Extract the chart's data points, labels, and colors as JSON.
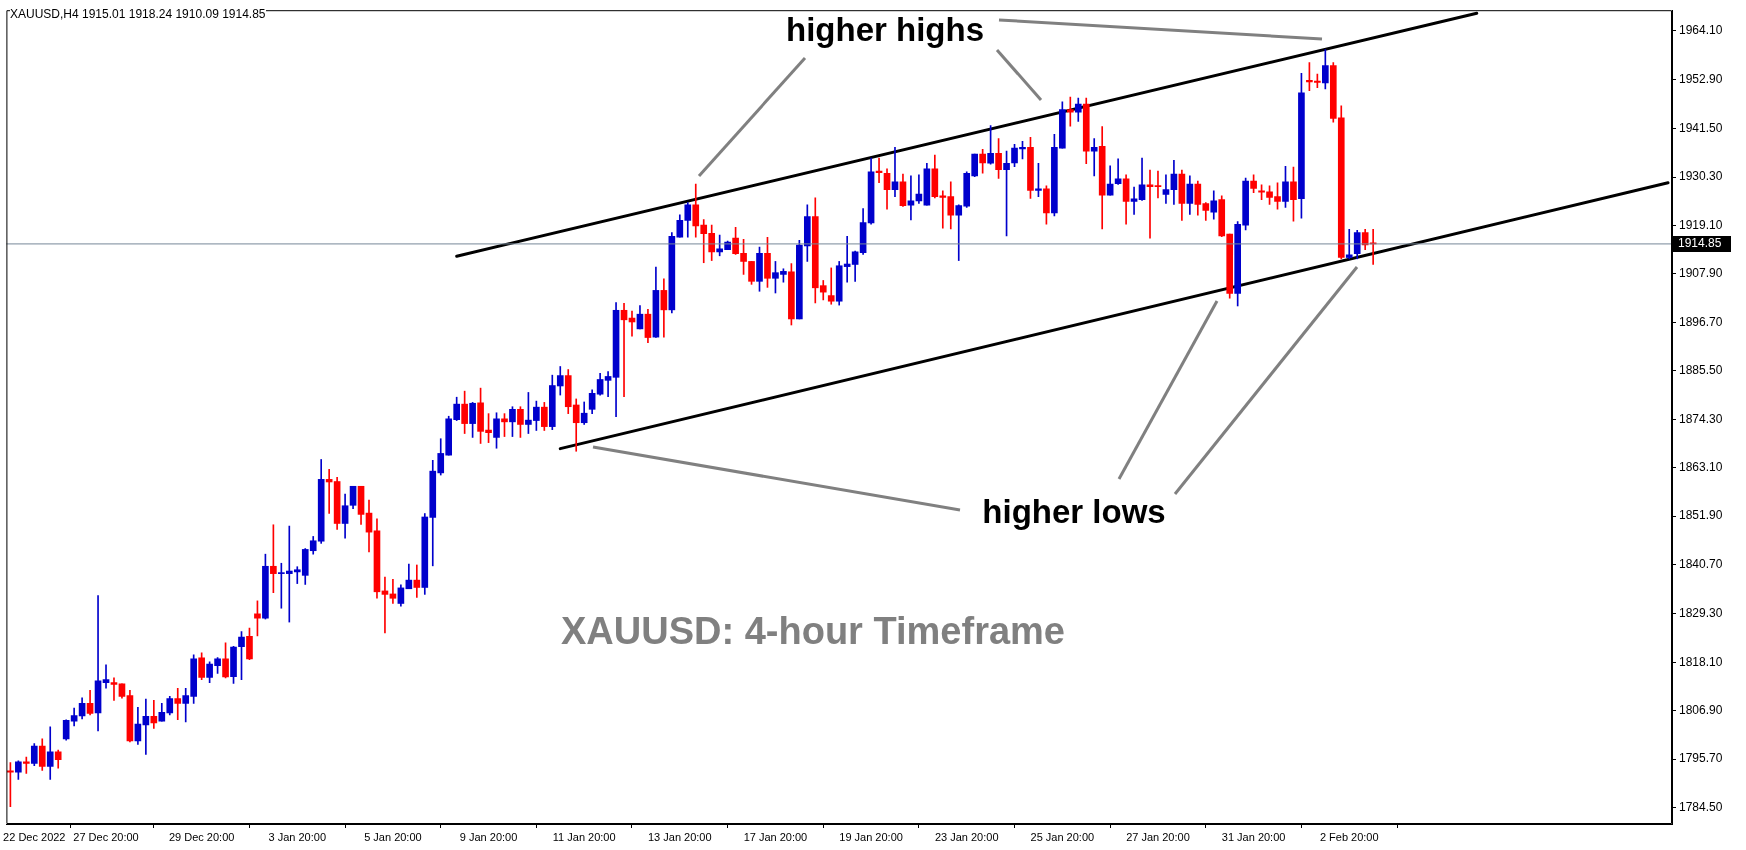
{
  "chart_data": {
    "type": "candlestick",
    "title": "XAUUSD,H4 1915.01 1918.24 1910.09 1914.85",
    "annotations": [
      "higher highs",
      "higher lows",
      "XAUUSD: 4-hour Timeframe"
    ],
    "categories": [
      null,
      null,
      null,
      "22 Dec 2022",
      null,
      null,
      null,
      null,
      null,
      null,
      null,
      null,
      "27 Dec 20:00",
      null,
      null,
      null,
      null,
      null,
      null,
      null,
      null,
      null,
      null,
      null,
      "29 Dec 20:00",
      null,
      null,
      null,
      null,
      null,
      null,
      null,
      null,
      null,
      null,
      null,
      "3 Jan 20:00",
      null,
      null,
      null,
      null,
      null,
      null,
      null,
      null,
      null,
      null,
      null,
      "5 Jan 20:00",
      null,
      null,
      null,
      null,
      null,
      null,
      null,
      null,
      null,
      null,
      null,
      "9 Jan 20:00",
      null,
      null,
      null,
      null,
      null,
      null,
      null,
      null,
      null,
      null,
      null,
      "11 Jan 20:00",
      null,
      null,
      null,
      null,
      null,
      null,
      null,
      null,
      null,
      null,
      null,
      "13 Jan 20:00",
      null,
      null,
      null,
      null,
      null,
      null,
      null,
      null,
      null,
      null,
      null,
      "17 Jan 20:00",
      null,
      null,
      null,
      null,
      null,
      null,
      null,
      null,
      null,
      null,
      null,
      "19 Jan 20:00",
      null,
      null,
      null,
      null,
      null,
      null,
      null,
      null,
      null,
      null,
      null,
      "23 Jan 20:00",
      null,
      null,
      null,
      null,
      null,
      null,
      null,
      null,
      null,
      null,
      null,
      "25 Jan 20:00",
      null,
      null,
      null,
      null,
      null,
      null,
      null,
      null,
      null,
      null,
      null,
      "27 Jan 20:00",
      null,
      null,
      null,
      null,
      null,
      null,
      null,
      null,
      null,
      null,
      null,
      "31 Jan 20:00",
      null,
      null,
      null,
      null,
      null,
      null,
      null,
      null,
      null,
      null,
      null,
      "2 Feb 20:00",
      null,
      null,
      null,
      null,
      null,
      null,
      null,
      null,
      null,
      null,
      null,
      null,
      null,
      null,
      null,
      null,
      null,
      null,
      null,
      null,
      null,
      null,
      null,
      null,
      null,
      null,
      null,
      null,
      null,
      null,
      null,
      null,
      null,
      null,
      null,
      null,
      null,
      null,
      null,
      null
    ],
    "ohlc": [
      [
        1793.0,
        1794.9,
        1784.7,
        1792.7
      ],
      [
        1792.7,
        1795.3,
        1791.0,
        1795.1
      ],
      [
        1795.1,
        1796.2,
        1792.4,
        1794.7
      ],
      [
        1794.7,
        1799.3,
        1794.2,
        1798.7
      ],
      [
        1798.7,
        1800.4,
        1793.1,
        1794.0
      ],
      [
        1794.0,
        1803.2,
        1791.0,
        1797.4
      ],
      [
        1797.4,
        1797.8,
        1793.6,
        1795.6
      ],
      [
        1800.4,
        1804.8,
        1800.1,
        1804.7
      ],
      [
        1804.5,
        1807.5,
        1803.4,
        1805.8
      ],
      [
        1805.7,
        1809.9,
        1805.0,
        1808.6
      ],
      [
        1808.6,
        1811.6,
        1805.9,
        1806.3
      ],
      [
        1806.4,
        1833.5,
        1802.2,
        1813.8
      ],
      [
        1813.4,
        1817.5,
        1812.1,
        1814.1
      ],
      [
        1813.4,
        1814.5,
        1809.3,
        1813.0
      ],
      [
        1813.1,
        1813.1,
        1809.8,
        1810.2
      ],
      [
        1810.4,
        1811.6,
        1799.7,
        1799.9
      ],
      [
        1799.9,
        1807.7,
        1799.1,
        1803.8
      ],
      [
        1803.6,
        1809.6,
        1796.8,
        1805.6
      ],
      [
        1805.6,
        1809.3,
        1802.8,
        1804.1
      ],
      [
        1804.5,
        1808.6,
        1804.5,
        1806.5
      ],
      [
        1806.4,
        1810.2,
        1805.9,
        1809.7
      ],
      [
        1809.7,
        1812.1,
        1804.8,
        1808.6
      ],
      [
        1808.6,
        1812.1,
        1804.3,
        1810.4
      ],
      [
        1810.2,
        1819.8,
        1808.6,
        1818.9
      ],
      [
        1819.1,
        1820.3,
        1814.1,
        1814.6
      ],
      [
        1814.6,
        1818.2,
        1813.4,
        1817.7
      ],
      [
        1817.3,
        1819.2,
        1815.5,
        1818.9
      ],
      [
        1818.9,
        1822.6,
        1814.5,
        1814.7
      ],
      [
        1814.8,
        1821.8,
        1813.2,
        1821.6
      ],
      [
        1821.7,
        1825.2,
        1814.1,
        1823.9
      ],
      [
        1824.1,
        1826.0,
        1818.7,
        1818.9
      ],
      [
        1829.3,
        1832.3,
        1824.2,
        1828.3
      ],
      [
        1828.3,
        1843.1,
        1828.1,
        1840.3
      ],
      [
        1840.3,
        1849.9,
        1834.2,
        1838.6
      ],
      [
        1838.6,
        1841.0,
        1830.6,
        1838.7
      ],
      [
        1838.6,
        1849.6,
        1827.4,
        1839.2
      ],
      [
        1839.0,
        1840.2,
        1836.3,
        1839.5
      ],
      [
        1838.2,
        1844.4,
        1836.1,
        1844.2
      ],
      [
        1843.9,
        1847.2,
        1843.1,
        1846.2
      ],
      [
        1846.1,
        1865.0,
        1845.6,
        1860.4
      ],
      [
        1860.4,
        1862.7,
        1852.5,
        1859.8
      ],
      [
        1859.9,
        1860.9,
        1848.8,
        1850.2
      ],
      [
        1850.2,
        1857.0,
        1846.8,
        1854.3
      ],
      [
        1854.4,
        1858.8,
        1853.6,
        1858.8
      ],
      [
        1858.8,
        1858.8,
        1850.0,
        1852.3
      ],
      [
        1852.6,
        1855.6,
        1843.6,
        1848.2
      ],
      [
        1848.5,
        1851.3,
        1832.9,
        1834.4
      ],
      [
        1834.6,
        1837.8,
        1824.9,
        1833.8
      ],
      [
        1833.9,
        1837.3,
        1831.7,
        1832.9
      ],
      [
        1831.7,
        1836.0,
        1831.1,
        1835.3
      ],
      [
        1835.1,
        1840.8,
        1835.1,
        1837.1
      ],
      [
        1837.1,
        1840.6,
        1833.1,
        1835.4
      ],
      [
        1835.4,
        1852.5,
        1833.8,
        1851.7
      ],
      [
        1851.6,
        1864.8,
        1840.4,
        1862.3
      ],
      [
        1861.9,
        1869.8,
        1861.4,
        1866.4
      ],
      [
        1866.0,
        1875.0,
        1866.0,
        1874.4
      ],
      [
        1874.2,
        1879.4,
        1874.0,
        1877.8
      ],
      [
        1877.8,
        1880.8,
        1871.0,
        1873.3
      ],
      [
        1873.3,
        1878.2,
        1870.1,
        1878.0
      ],
      [
        1878.1,
        1881.5,
        1868.7,
        1871.5
      ],
      [
        1871.8,
        1875.6,
        1868.9,
        1871.2
      ],
      [
        1870.1,
        1875.8,
        1867.6,
        1874.4
      ],
      [
        1874.4,
        1875.6,
        1870.3,
        1873.7
      ],
      [
        1873.7,
        1877.2,
        1870.3,
        1876.6
      ],
      [
        1876.6,
        1877.2,
        1870.1,
        1873.1
      ],
      [
        1873.1,
        1880.5,
        1871.0,
        1874.1
      ],
      [
        1874.0,
        1878.5,
        1871.7,
        1877.1
      ],
      [
        1877.1,
        1878.2,
        1871.7,
        1872.6
      ],
      [
        1872.6,
        1884.5,
        1871.9,
        1882.1
      ],
      [
        1882.0,
        1886.5,
        1879.9,
        1884.4
      ],
      [
        1884.4,
        1885.8,
        1875.6,
        1877.2
      ],
      [
        1877.6,
        1879.0,
        1866.9,
        1873.5
      ],
      [
        1873.5,
        1878.3,
        1873.1,
        1875.7
      ],
      [
        1876.6,
        1881.1,
        1875.6,
        1880.3
      ],
      [
        1880.1,
        1884.9,
        1879.9,
        1883.5
      ],
      [
        1883.3,
        1885.3,
        1879.5,
        1884.2
      ],
      [
        1884.0,
        1901.3,
        1874.9,
        1899.5
      ],
      [
        1899.5,
        1901.1,
        1879.5,
        1897.3
      ],
      [
        1897.7,
        1899.3,
        1893.5,
        1896.8
      ],
      [
        1895.2,
        1900.6,
        1895.2,
        1898.6
      ],
      [
        1898.6,
        1899.7,
        1892.0,
        1893.2
      ],
      [
        1893.3,
        1909.5,
        1893.2,
        1904.1
      ],
      [
        1904.1,
        1906.8,
        1893.3,
        1899.6
      ],
      [
        1899.6,
        1917.5,
        1898.9,
        1916.6
      ],
      [
        1916.4,
        1921.6,
        1916.4,
        1920.3
      ],
      [
        1920.3,
        1924.4,
        1916.4,
        1923.9
      ],
      [
        1923.9,
        1928.7,
        1916.4,
        1919.0
      ],
      [
        1919.2,
        1920.5,
        1910.5,
        1917.2
      ],
      [
        1917.3,
        1919.2,
        1911.0,
        1913.0
      ],
      [
        1913.0,
        1916.9,
        1912.1,
        1913.7
      ],
      [
        1913.5,
        1915.5,
        1913.5,
        1915.3
      ],
      [
        1916.2,
        1918.7,
        1912.4,
        1912.6
      ],
      [
        1912.7,
        1915.9,
        1907.8,
        1910.8
      ],
      [
        1910.8,
        1910.8,
        1905.5,
        1906.2
      ],
      [
        1906.2,
        1914.1,
        1903.9,
        1912.7
      ],
      [
        1912.7,
        1916.4,
        1904.8,
        1906.9
      ],
      [
        1906.9,
        1910.8,
        1903.5,
        1908.2
      ],
      [
        1907.8,
        1909.1,
        1906.0,
        1908.5
      ],
      [
        1908.4,
        1910.3,
        1896.1,
        1897.5
      ],
      [
        1897.5,
        1915.7,
        1897.5,
        1914.6
      ],
      [
        1914.4,
        1923.9,
        1910.8,
        1921.2
      ],
      [
        1921.2,
        1925.5,
        1901.2,
        1904.7
      ],
      [
        1905.2,
        1906.4,
        1901.9,
        1903.7
      ],
      [
        1902.9,
        1909.3,
        1900.9,
        1901.6
      ],
      [
        1901.6,
        1910.8,
        1900.7,
        1909.8
      ],
      [
        1909.6,
        1916.6,
        1906.0,
        1910.2
      ],
      [
        1910.1,
        1913.2,
        1906.2,
        1913.0
      ],
      [
        1912.8,
        1923.0,
        1912.4,
        1919.8
      ],
      [
        1919.7,
        1934.7,
        1919.4,
        1931.5
      ],
      [
        1931.7,
        1934.7,
        1929.0,
        1931.3
      ],
      [
        1931.2,
        1932.2,
        1922.9,
        1927.4
      ],
      [
        1927.4,
        1937.2,
        1925.8,
        1929.2
      ],
      [
        1929.2,
        1931.0,
        1923.5,
        1923.7
      ],
      [
        1923.8,
        1930.6,
        1920.4,
        1924.8
      ],
      [
        1924.8,
        1930.8,
        1924.2,
        1926.4
      ],
      [
        1923.8,
        1933.5,
        1923.8,
        1932.2
      ],
      [
        1932.2,
        1935.4,
        1925.5,
        1925.8
      ],
      [
        1926.0,
        1927.1,
        1918.5,
        1925.6
      ],
      [
        1925.8,
        1929.2,
        1918.3,
        1921.5
      ],
      [
        1921.5,
        1923.9,
        1911.0,
        1923.7
      ],
      [
        1923.6,
        1931.5,
        1923.3,
        1931.2
      ],
      [
        1930.6,
        1935.6,
        1930.4,
        1935.6
      ],
      [
        1935.6,
        1936.7,
        1931.2,
        1933.6
      ],
      [
        1933.5,
        1942.2,
        1933.3,
        1935.8
      ],
      [
        1935.8,
        1939.2,
        1930.0,
        1932.0
      ],
      [
        1932.0,
        1936.3,
        1916.7,
        1933.5
      ],
      [
        1933.6,
        1937.9,
        1932.7,
        1937.0
      ],
      [
        1936.8,
        1938.6,
        1934.5,
        1937.2
      ],
      [
        1937.2,
        1939.5,
        1925.4,
        1927.2
      ],
      [
        1927.2,
        1933.5,
        1925.8,
        1927.6
      ],
      [
        1927.6,
        1928.3,
        1919.4,
        1922.0
      ],
      [
        1922.0,
        1940.2,
        1921.3,
        1937.2
      ],
      [
        1937.0,
        1947.7,
        1937.0,
        1945.9
      ],
      [
        1945.9,
        1948.8,
        1942.1,
        1945.3
      ],
      [
        1945.3,
        1948.6,
        1943.2,
        1947.2
      ],
      [
        1947.2,
        1948.6,
        1933.4,
        1936.3
      ],
      [
        1936.3,
        1939.2,
        1930.6,
        1937.2
      ],
      [
        1937.4,
        1942.0,
        1918.3,
        1926.1
      ],
      [
        1926.1,
        1932.9,
        1926.1,
        1928.7
      ],
      [
        1928.8,
        1934.5,
        1928.6,
        1929.9
      ],
      [
        1929.9,
        1930.8,
        1919.4,
        1924.7
      ],
      [
        1924.7,
        1928.0,
        1921.7,
        1925.3
      ],
      [
        1925.1,
        1934.7,
        1924.9,
        1928.5
      ],
      [
        1928.5,
        1931.9,
        1916.2,
        1928.1
      ],
      [
        1928.3,
        1931.7,
        1925.5,
        1928.1
      ],
      [
        1926.3,
        1930.8,
        1924.2,
        1927.4
      ],
      [
        1927.4,
        1934.2,
        1924.0,
        1931.0
      ],
      [
        1931.0,
        1931.9,
        1920.3,
        1924.2
      ],
      [
        1924.2,
        1930.6,
        1921.7,
        1928.7
      ],
      [
        1928.7,
        1929.4,
        1921.5,
        1924.0
      ],
      [
        1924.2,
        1924.4,
        1920.3,
        1922.6
      ],
      [
        1922.2,
        1927.1,
        1920.6,
        1924.8
      ],
      [
        1925.1,
        1926.0,
        1916.5,
        1916.7
      ],
      [
        1917.1,
        1917.1,
        1902.3,
        1903.4
      ],
      [
        1903.4,
        1920.0,
        1900.5,
        1919.4
      ],
      [
        1919.2,
        1930.1,
        1918.1,
        1929.4
      ],
      [
        1929.4,
        1930.8,
        1926.7,
        1927.7
      ],
      [
        1927.1,
        1928.5,
        1925.1,
        1926.8
      ],
      [
        1926.9,
        1928.3,
        1924.0,
        1925.6
      ],
      [
        1925.8,
        1929.0,
        1922.9,
        1924.7
      ],
      [
        1924.7,
        1932.8,
        1923.3,
        1929.2
      ],
      [
        1929.2,
        1932.6,
        1920.1,
        1925.1
      ],
      [
        1925.3,
        1954.3,
        1920.8,
        1949.8
      ],
      [
        1952.7,
        1956.8,
        1950.3,
        1952.3
      ],
      [
        1952.5,
        1954.1,
        1951.0,
        1952.2
      ],
      [
        1952.1,
        1959.8,
        1950.7,
        1956.1
      ],
      [
        1956.1,
        1956.8,
        1943.0,
        1943.9
      ],
      [
        1944.0,
        1946.8,
        1911.4,
        1911.7
      ],
      [
        1911.7,
        1918.2,
        1911.4,
        1912.3
      ],
      [
        1912.6,
        1918.0,
        1911.4,
        1917.5
      ],
      [
        1917.5,
        1918.2,
        1913.5,
        1914.6
      ],
      [
        1915.01,
        1918.24,
        1910.09,
        1914.85
      ],
      null,
      null,
      null,
      null,
      null,
      null,
      null,
      null,
      null,
      null,
      null,
      null,
      null,
      null,
      null,
      null,
      null,
      null,
      null,
      null,
      null,
      null,
      null,
      null,
      null,
      null,
      null,
      null,
      null,
      null,
      null,
      null,
      null,
      null,
      null,
      null,
      null
    ],
    "colors": [
      "#ff0000",
      "#0000cc",
      "#ff0000",
      "#0000cc",
      "#ff0000",
      "#0000cc",
      "#ff0000",
      "#0000cc",
      "#0000cc",
      "#0000cc",
      "#ff0000",
      "#0000cc",
      "#0000cc",
      "#ff0000",
      "#ff0000",
      "#ff0000",
      "#0000cc",
      "#0000cc",
      "#ff0000",
      "#0000cc",
      "#0000cc",
      "#ff0000",
      "#0000cc",
      "#0000cc",
      "#ff0000",
      "#0000cc",
      "#0000cc",
      "#ff0000",
      "#0000cc",
      "#0000cc",
      "#ff0000",
      "#ff0000",
      "#0000cc",
      "#ff0000",
      "#0000cc",
      "#0000cc",
      "#0000cc",
      "#0000cc",
      "#0000cc",
      "#0000cc",
      "#ff0000",
      "#ff0000",
      "#0000cc",
      "#0000cc",
      "#ff0000",
      "#ff0000",
      "#ff0000",
      "#ff0000",
      "#ff0000",
      "#0000cc",
      "#0000cc",
      "#ff0000",
      "#0000cc",
      "#0000cc",
      "#0000cc",
      "#0000cc",
      "#0000cc",
      "#ff0000",
      "#0000cc",
      "#ff0000",
      "#ff0000",
      "#0000cc",
      "#ff0000",
      "#0000cc",
      "#ff0000",
      "#0000cc",
      "#0000cc",
      "#ff0000",
      "#0000cc",
      "#0000cc",
      "#ff0000",
      "#ff0000",
      "#0000cc",
      "#0000cc",
      "#0000cc",
      "#0000cc",
      "#0000cc",
      "#ff0000",
      "#ff0000",
      "#0000cc",
      "#ff0000",
      "#0000cc",
      "#ff0000",
      "#0000cc",
      "#0000cc",
      "#0000cc",
      "#ff0000",
      "#ff0000",
      "#ff0000",
      "#0000cc",
      "#0000cc",
      "#ff0000",
      "#ff0000",
      "#ff0000",
      "#0000cc",
      "#ff0000",
      "#0000cc",
      "#0000cc",
      "#ff0000",
      "#0000cc",
      "#0000cc",
      "#ff0000",
      "#ff0000",
      "#ff0000",
      "#0000cc",
      "#0000cc",
      "#0000cc",
      "#0000cc",
      "#0000cc",
      "#ff0000",
      "#ff0000",
      "#0000cc",
      "#ff0000",
      "#0000cc",
      "#0000cc",
      "#0000cc",
      "#ff0000",
      "#ff0000",
      "#ff0000",
      "#0000cc",
      "#0000cc",
      "#0000cc",
      "#ff0000",
      "#0000cc",
      "#ff0000",
      "#0000cc",
      "#0000cc",
      "#0000cc",
      "#ff0000",
      "#0000cc",
      "#ff0000",
      "#0000cc",
      "#0000cc",
      "#ff0000",
      "#0000cc",
      "#ff0000",
      "#0000cc",
      "#ff0000",
      "#0000cc",
      "#0000cc",
      "#ff0000",
      "#0000cc",
      "#0000cc",
      "#ff0000",
      "#ff0000",
      "#0000cc",
      "#0000cc",
      "#ff0000",
      "#0000cc",
      "#ff0000",
      "#ff0000",
      "#0000cc",
      "#ff0000",
      "#ff0000",
      "#0000cc",
      "#0000cc",
      "#ff0000",
      "#ff0000",
      "#ff0000",
      "#ff0000",
      "#0000cc",
      "#ff0000",
      "#0000cc",
      "#ff0000",
      "#ff0000",
      "#0000cc",
      "#ff0000",
      "#ff0000",
      "#0000cc",
      "#0000cc",
      "#ff0000",
      "#ff0000",
      null,
      null,
      null,
      null,
      null,
      null,
      null,
      null,
      null,
      null,
      null,
      null,
      null,
      null,
      null,
      null,
      null,
      null,
      null,
      null,
      null,
      null,
      null,
      null,
      null,
      null,
      null,
      null,
      null,
      null,
      null,
      null,
      null,
      null,
      null,
      null,
      null
    ],
    "series": [
      {
        "type": "line",
        "color": "#000000",
        "values": [
          null,
          null,
          null,
          null,
          null,
          null,
          null,
          null,
          null,
          null,
          null,
          null,
          null,
          null,
          null,
          null,
          null,
          null,
          null,
          null,
          null,
          null,
          null,
          null,
          null,
          null,
          null,
          null,
          null,
          null,
          null,
          null,
          null,
          null,
          null,
          null,
          null,
          null,
          null,
          null,
          null,
          null,
          null,
          null,
          null,
          null,
          null,
          null,
          null,
          null,
          null,
          null,
          null,
          null,
          null,
          null,
          1912.0,
          null,
          null,
          null,
          null,
          null,
          null,
          null,
          null,
          null,
          null,
          null,
          null,
          null,
          null,
          null,
          null,
          null,
          null,
          null,
          null,
          null,
          null,
          null,
          null,
          null,
          null,
          null,
          null,
          null,
          null,
          null,
          null,
          null,
          null,
          null,
          null,
          null,
          null,
          null,
          null,
          null,
          null,
          null,
          null,
          null,
          null,
          null,
          null,
          null,
          null,
          null,
          null,
          null,
          null,
          null,
          null,
          null,
          null,
          null,
          null,
          null,
          null,
          null,
          null,
          null,
          null,
          null,
          null,
          null,
          null,
          null,
          null,
          null,
          null,
          null,
          null,
          null,
          null,
          null,
          null,
          null,
          null,
          null,
          null,
          null,
          null,
          null,
          null,
          null,
          null,
          null,
          null,
          null,
          null,
          null,
          null,
          null,
          null,
          null,
          null,
          null,
          null,
          null,
          null,
          null,
          null,
          null,
          null,
          null,
          null,
          null,
          null,
          null,
          null,
          null,
          null,
          null,
          null,
          null,
          null,
          null,
          null,
          null,
          null,
          null,
          null,
          null,
          1968.2,
          null,
          null,
          null,
          null,
          null,
          null,
          null,
          null,
          null,
          null,
          null,
          null,
          null,
          null,
          null,
          null,
          null,
          null,
          null,
          null,
          null,
          null,
          null,
          null
        ]
      },
      {
        "type": "line",
        "color": "#000000",
        "values": [
          null,
          null,
          null,
          null,
          null,
          null,
          null,
          null,
          null,
          null,
          null,
          null,
          null,
          null,
          null,
          null,
          null,
          null,
          null,
          null,
          null,
          null,
          null,
          null,
          null,
          null,
          null,
          null,
          null,
          null,
          null,
          null,
          null,
          null,
          null,
          null,
          null,
          null,
          null,
          null,
          null,
          null,
          null,
          null,
          null,
          null,
          null,
          null,
          null,
          null,
          null,
          null,
          null,
          null,
          null,
          null,
          null,
          null,
          null,
          null,
          null,
          null,
          null,
          null,
          null,
          null,
          null,
          null,
          null,
          1867.5,
          null,
          null,
          null,
          null,
          null,
          null,
          null,
          null,
          null,
          null,
          null,
          null,
          null,
          null,
          null,
          null,
          null,
          null,
          null,
          null,
          null,
          null,
          null,
          null,
          null,
          null,
          null,
          null,
          null,
          null,
          null,
          null,
          null,
          null,
          null,
          null,
          null,
          null,
          null,
          null,
          null,
          null,
          null,
          null,
          null,
          null,
          null,
          null,
          null,
          null,
          null,
          null,
          null,
          null,
          null,
          null,
          null,
          null,
          null,
          null,
          null,
          null,
          null,
          null,
          null,
          null,
          null,
          null,
          null,
          null,
          null,
          null,
          null,
          null,
          null,
          null,
          null,
          null,
          null,
          null,
          null,
          null,
          null,
          null,
          null,
          null,
          null,
          null,
          null,
          null,
          null,
          null,
          null,
          null,
          null,
          null,
          null,
          null,
          null,
          null,
          null,
          null,
          null,
          null,
          null,
          null,
          null,
          null,
          null,
          null,
          null,
          null,
          null,
          null,
          null,
          null,
          null,
          null,
          null,
          null,
          null,
          null,
          null,
          null,
          null,
          null,
          null,
          null,
          null,
          null,
          null,
          null,
          null,
          null,
          null,
          null,
          null,
          null,
          1929.0
        ]
      }
    ],
    "ylim": [
      1780.7,
      1968.9
    ],
    "yticks": [
      {
        "value": 1784.5,
        "label": "1784.50"
      },
      {
        "value": 1795.7,
        "label": "1795.70"
      },
      {
        "value": 1806.9,
        "label": "1806.90"
      },
      {
        "value": 1818.1,
        "label": "1818.10"
      },
      {
        "value": 1829.3,
        "label": "1829.30"
      },
      {
        "value": 1840.7,
        "label": "1840.70"
      },
      {
        "value": 1851.9,
        "label": "1851.90"
      },
      {
        "value": 1863.1,
        "label": "1863.10"
      },
      {
        "value": 1874.3,
        "label": "1874.30"
      },
      {
        "value": 1885.5,
        "label": "1885.50"
      },
      {
        "value": 1896.7,
        "label": "1896.70"
      },
      {
        "value": 1907.9,
        "label": "1907.90"
      },
      {
        "value": 1919.1,
        "label": "1919.10"
      },
      {
        "value": 1930.3,
        "label": "1930.30"
      },
      {
        "value": 1941.5,
        "label": "1941.50"
      },
      {
        "value": 1952.9,
        "label": "1952.90"
      },
      {
        "value": 1964.1,
        "label": "1964.10"
      }
    ],
    "ref_lines": [
      {
        "axis": "y",
        "value": 1914.85,
        "label": "1914.85",
        "color": "#778899"
      }
    ],
    "grid": false,
    "legend": false
  }
}
